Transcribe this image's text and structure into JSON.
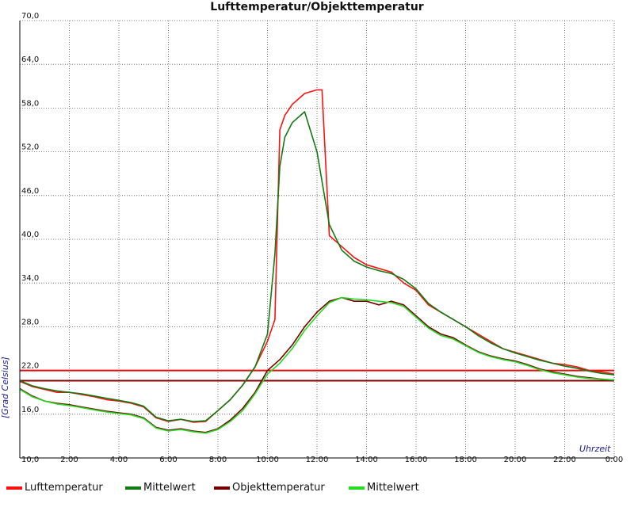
{
  "chart_data": {
    "type": "line",
    "title": "Lufttemperatur/Objekttemperatur",
    "ylabel": "[Grad Celsius]",
    "xlabel": "Uhrzeit",
    "xlim": [
      0,
      24
    ],
    "ylim": [
      10,
      70
    ],
    "x_ticks": [
      0,
      2,
      4,
      6,
      8,
      10,
      12,
      14,
      16,
      18,
      20,
      22,
      24
    ],
    "x_tick_labels": [
      "0:00",
      "2:00",
      "4:00",
      "6:00",
      "8:00",
      "10:00",
      "12:00",
      "14:00",
      "16:00",
      "18:00",
      "20:00",
      "22:00",
      "0:00"
    ],
    "y_ticks": [
      16,
      22,
      28,
      34,
      40,
      46,
      52,
      58,
      64,
      70
    ],
    "y_tick_labels": [
      "16,0",
      "22,0",
      "28,0",
      "34,0",
      "40,0",
      "46,0",
      "52,0",
      "58,0",
      "64,0",
      "70,0"
    ],
    "y_origin_label": "10,0",
    "grid": true,
    "legend_position": "bottom",
    "reference_lines": [
      {
        "y": 22.0,
        "color": "#e01010"
      },
      {
        "y": 20.6,
        "color": "#800000"
      }
    ],
    "series": [
      {
        "name": "Lufttemperatur",
        "color": "#ff1010",
        "x": [
          0,
          0.5,
          1,
          1.5,
          2,
          2.5,
          3,
          3.5,
          4,
          4.5,
          5,
          5.5,
          6,
          6.5,
          7,
          7.5,
          8,
          8.5,
          9,
          9.5,
          10,
          10.3,
          10.5,
          10.7,
          11,
          11.5,
          12,
          12.2,
          12.5,
          13,
          13.5,
          14,
          14.5,
          15,
          15.5,
          16,
          16.5,
          17,
          17.5,
          18,
          18.5,
          19,
          19.5,
          20,
          20.5,
          21,
          21.5,
          22,
          22.5,
          23,
          23.5,
          24
        ],
        "y": [
          20.5,
          19.8,
          19.4,
          19.0,
          19.0,
          18.7,
          18.4,
          18.0,
          17.8,
          17.5,
          17.0,
          15.5,
          15.0,
          15.3,
          14.9,
          15.0,
          16.5,
          18.0,
          20.0,
          22.5,
          26.0,
          29.0,
          55.0,
          57.0,
          58.5,
          60.0,
          60.5,
          60.5,
          40.5,
          39.0,
          37.5,
          36.5,
          36.0,
          35.5,
          34.0,
          33.0,
          31.0,
          30.0,
          29.0,
          28.0,
          27.0,
          26.0,
          25.0,
          24.5,
          24.0,
          23.5,
          23.0,
          22.8,
          22.5,
          22.0,
          21.8,
          21.5
        ]
      },
      {
        "name": "Mittelwert",
        "color": "#117a11",
        "x": [
          0,
          0.5,
          1,
          1.5,
          2,
          2.5,
          3,
          3.5,
          4,
          4.5,
          5,
          5.5,
          6,
          6.5,
          7,
          7.5,
          8,
          8.5,
          9,
          9.5,
          10,
          10.3,
          10.5,
          10.7,
          11,
          11.5,
          12,
          12.5,
          13,
          13.5,
          14,
          14.5,
          15,
          15.5,
          16,
          16.5,
          17,
          17.5,
          18,
          18.5,
          19,
          19.5,
          20,
          20.5,
          21,
          21.5,
          22,
          22.5,
          23,
          23.5,
          24
        ],
        "y": [
          20.6,
          19.9,
          19.5,
          19.2,
          19.0,
          18.8,
          18.5,
          18.2,
          17.9,
          17.6,
          17.1,
          15.6,
          15.1,
          15.3,
          15.0,
          15.1,
          16.5,
          18.0,
          20.0,
          22.5,
          27.0,
          38.0,
          50.0,
          54.0,
          56.0,
          57.5,
          52.0,
          42.0,
          38.5,
          37.0,
          36.2,
          35.7,
          35.3,
          34.5,
          33.2,
          31.2,
          30.0,
          29.0,
          28.0,
          26.8,
          25.8,
          25.0,
          24.4,
          23.9,
          23.4,
          23.0,
          22.6,
          22.3,
          21.9,
          21.6,
          21.4
        ]
      },
      {
        "name": "Objekttemperatur",
        "color": "#7a0000",
        "x": [
          0,
          0.5,
          1,
          1.5,
          2,
          2.5,
          3,
          3.5,
          4,
          4.5,
          5,
          5.5,
          6,
          6.5,
          7,
          7.5,
          8,
          8.5,
          9,
          9.5,
          10,
          10.5,
          11,
          11.5,
          12,
          12.5,
          13,
          13.5,
          14,
          14.5,
          15,
          15.5,
          16,
          16.5,
          17,
          17.5,
          18,
          18.5,
          19,
          19.5,
          20,
          20.5,
          21,
          21.5,
          22,
          22.5,
          23,
          23.5,
          24
        ],
        "y": [
          19.5,
          18.5,
          17.8,
          17.5,
          17.3,
          17.0,
          16.7,
          16.4,
          16.2,
          16.0,
          15.5,
          14.2,
          13.8,
          14.0,
          13.7,
          13.5,
          14.0,
          15.2,
          16.8,
          19.0,
          22.0,
          23.5,
          25.5,
          28.0,
          30.0,
          31.5,
          32.0,
          31.5,
          31.5,
          31.0,
          31.5,
          31.0,
          29.5,
          28.0,
          27.0,
          26.5,
          25.5,
          24.6,
          24.0,
          23.6,
          23.3,
          22.8,
          22.2,
          21.8,
          21.5,
          21.2,
          21.0,
          20.8,
          20.7
        ]
      },
      {
        "name": "Mittelwert",
        "color": "#22dd22",
        "x": [
          0,
          0.5,
          1,
          1.5,
          2,
          2.5,
          3,
          3.5,
          4,
          4.5,
          5,
          5.5,
          6,
          6.5,
          7,
          7.5,
          8,
          8.5,
          9,
          9.5,
          10,
          10.5,
          11,
          11.5,
          12,
          12.5,
          13,
          13.5,
          14,
          14.5,
          15,
          15.5,
          16,
          16.5,
          17,
          17.5,
          18,
          18.5,
          19,
          19.5,
          20,
          20.5,
          21,
          21.5,
          22,
          22.5,
          23,
          23.5,
          24
        ],
        "y": [
          19.4,
          18.4,
          17.8,
          17.4,
          17.2,
          16.9,
          16.6,
          16.3,
          16.1,
          15.9,
          15.4,
          14.1,
          13.7,
          13.9,
          13.6,
          13.4,
          13.9,
          15.0,
          16.5,
          18.8,
          21.5,
          23.0,
          25.0,
          27.5,
          29.5,
          31.3,
          32.0,
          31.8,
          31.7,
          31.5,
          31.3,
          30.8,
          29.3,
          27.8,
          26.8,
          26.3,
          25.4,
          24.5,
          23.9,
          23.5,
          23.2,
          22.7,
          22.1,
          21.7,
          21.4,
          21.1,
          20.9,
          20.8,
          20.7
        ]
      }
    ]
  }
}
